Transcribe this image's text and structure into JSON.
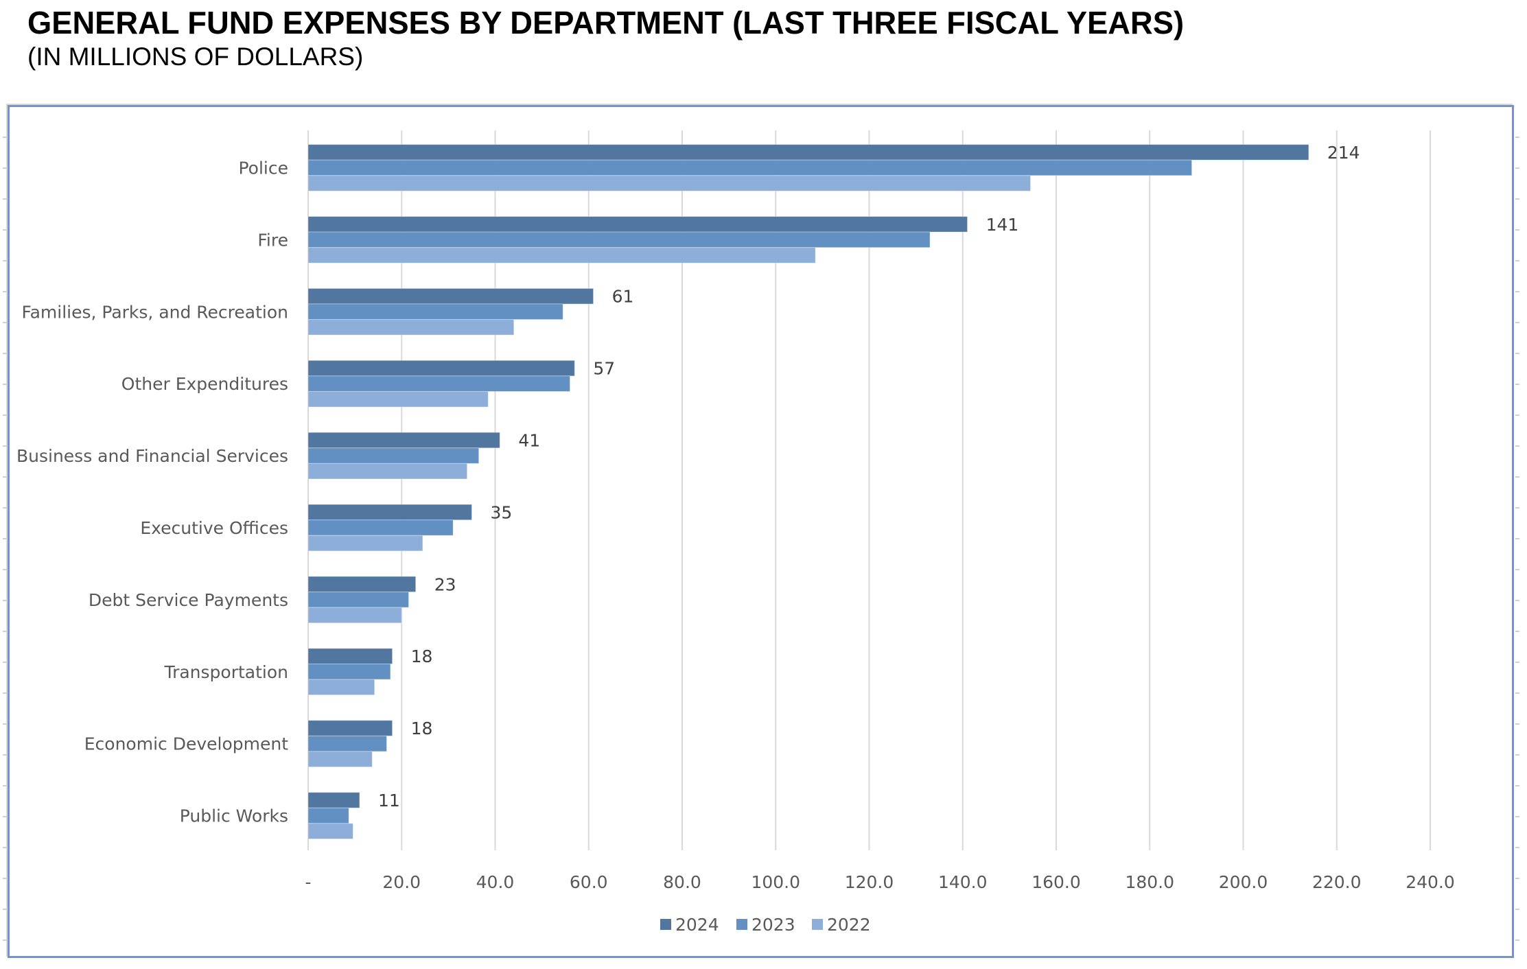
{
  "header": {
    "title": "GENERAL FUND EXPENSES BY DEPARTMENT (LAST THREE FISCAL YEARS)",
    "subtitle": "(IN MILLIONS OF DOLLARS)"
  },
  "chart_data": {
    "type": "bar",
    "orientation": "horizontal",
    "title": "GENERAL FUND EXPENSES BY DEPARTMENT (LAST THREE FISCAL YEARS)",
    "subtitle": "(IN MILLIONS OF DOLLARS)",
    "xlabel": "",
    "ylabel": "",
    "xlim": [
      0,
      240
    ],
    "x_ticks": [
      0,
      20,
      40,
      60,
      80,
      100,
      120,
      140,
      160,
      180,
      200,
      220,
      240
    ],
    "x_tick_labels": [
      "-",
      "20.0",
      "40.0",
      "60.0",
      "80.0",
      "100.0",
      "120.0",
      "140.0",
      "160.0",
      "180.0",
      "200.0",
      "220.0",
      "240.0"
    ],
    "grid": "vertical",
    "legend_position": "bottom",
    "categories": [
      "Police",
      "Fire",
      "Families, Parks, and Recreation",
      "Other Expenditures",
      "Business and Financial Services",
      "Executive Offices",
      "Debt Service Payments",
      "Transportation",
      "Economic Development",
      "Public Works"
    ],
    "series": [
      {
        "name": "2024",
        "color": "#5177A1",
        "values": [
          214,
          141,
          61,
          57,
          41,
          35,
          23,
          18,
          18,
          11
        ]
      },
      {
        "name": "2023",
        "color": "#6390C3",
        "values": [
          189,
          133,
          54.5,
          56,
          36.5,
          31,
          21.5,
          17.6,
          16.8,
          8.7
        ]
      },
      {
        "name": "2022",
        "color": "#8EAEDA",
        "values": [
          154.5,
          108.5,
          44,
          38.5,
          34,
          24.5,
          20,
          14.2,
          13.7,
          9.6
        ]
      }
    ],
    "data_labels": {
      "series": "2024",
      "labels": [
        "214",
        "141",
        "61",
        "57",
        "41",
        "35",
        "23",
        "18",
        "18",
        "11"
      ]
    }
  },
  "colors": {
    "frame_border": "#6F93D6",
    "gridline": "#D9D9D9",
    "axis_text": "#595959"
  }
}
